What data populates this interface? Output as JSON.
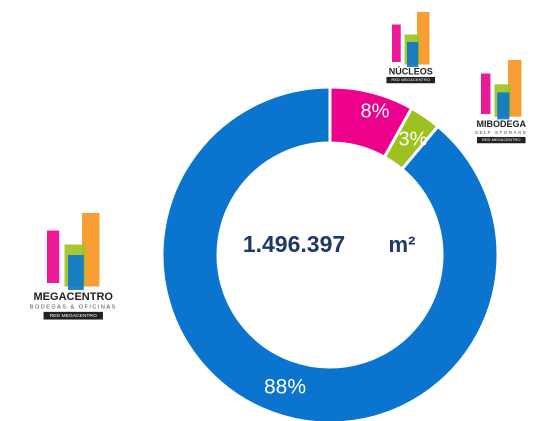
{
  "chart_data": {
    "type": "pie",
    "donut": true,
    "categories": [
      "NÚCLEOS",
      "MIBODEGA",
      "MEGACENTRO"
    ],
    "values": [
      8,
      3,
      88
    ],
    "value_labels": [
      "8%",
      "3%",
      "88%"
    ],
    "colors": [
      "#ec008c",
      "#9dc11f",
      "#0a74cf"
    ],
    "center_label": "1.496.397",
    "center_unit": "m²",
    "logos": [
      {
        "network": "RED MEGACENTRO"
      },
      {
        "tagline": "SELF STORAGE",
        "network": "RED MEGACENTRO"
      },
      {
        "tagline": "BODEGAS & OFICINAS",
        "network": "RED MEGACENTRO"
      }
    ]
  }
}
